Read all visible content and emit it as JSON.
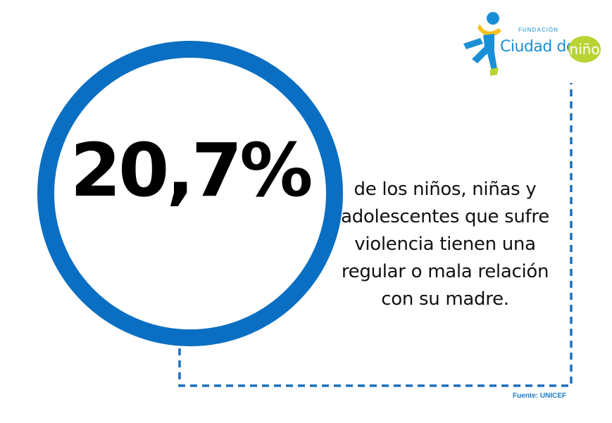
{
  "logo": {
    "small_text": "FUNDACIÓN",
    "main_text": "Ciudad del",
    "badge_text": "niño",
    "colors": {
      "blue": "#1b8fd6",
      "green": "#b8d432",
      "yellow": "#f6c21c"
    }
  },
  "stat": {
    "value": "20,7%",
    "statement": "de los niños, niñas y adolescentes que sufre violencia tienen una regular o mala relación con su madre."
  },
  "source": "Fuente: UNICEF",
  "colors": {
    "ring": "#0a6fc2",
    "dash": "#1b6fc0",
    "text": "#000000"
  }
}
